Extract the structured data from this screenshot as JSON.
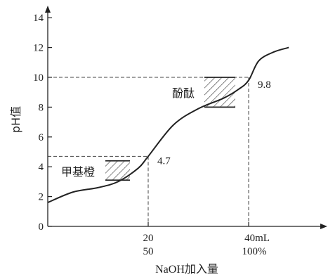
{
  "chart_data": {
    "type": "line",
    "ylabel": "pH值",
    "xlabel": "NaOH加入量",
    "ylim": [
      0,
      14
    ],
    "yticks": [
      "0",
      "2",
      "4",
      "6",
      "8",
      "10",
      "12",
      "14"
    ],
    "x_ticks_primary": [
      "20",
      "40mL"
    ],
    "x_ticks_secondary": [
      "50",
      "100%"
    ],
    "curve": {
      "x": [
        0,
        5,
        10,
        14,
        18,
        20,
        25,
        30,
        35,
        38,
        40,
        42,
        45,
        48
      ],
      "y": [
        1.6,
        2.3,
        2.6,
        3.0,
        3.9,
        4.7,
        6.8,
        7.9,
        8.6,
        9.2,
        9.8,
        11.1,
        11.7,
        12.0
      ]
    },
    "ranges": [
      {
        "label": "甲基橙",
        "low": 3.1,
        "high": 4.4
      },
      {
        "label": "酚酞",
        "low": 8.0,
        "high": 10.0
      }
    ],
    "points": [
      {
        "label": "4.7",
        "x": 20,
        "y": 4.7
      },
      {
        "label": "9.8",
        "x": 40,
        "y": 9.8
      }
    ],
    "reference_lines": [
      {
        "x": 20,
        "y": 4.7
      },
      {
        "x": 40,
        "y": 10.0
      }
    ],
    "grid": false,
    "legend": "none",
    "colors": {
      "line": "#222222",
      "axis": "#222222",
      "text": "#222222",
      "hatch": "#333333"
    }
  }
}
